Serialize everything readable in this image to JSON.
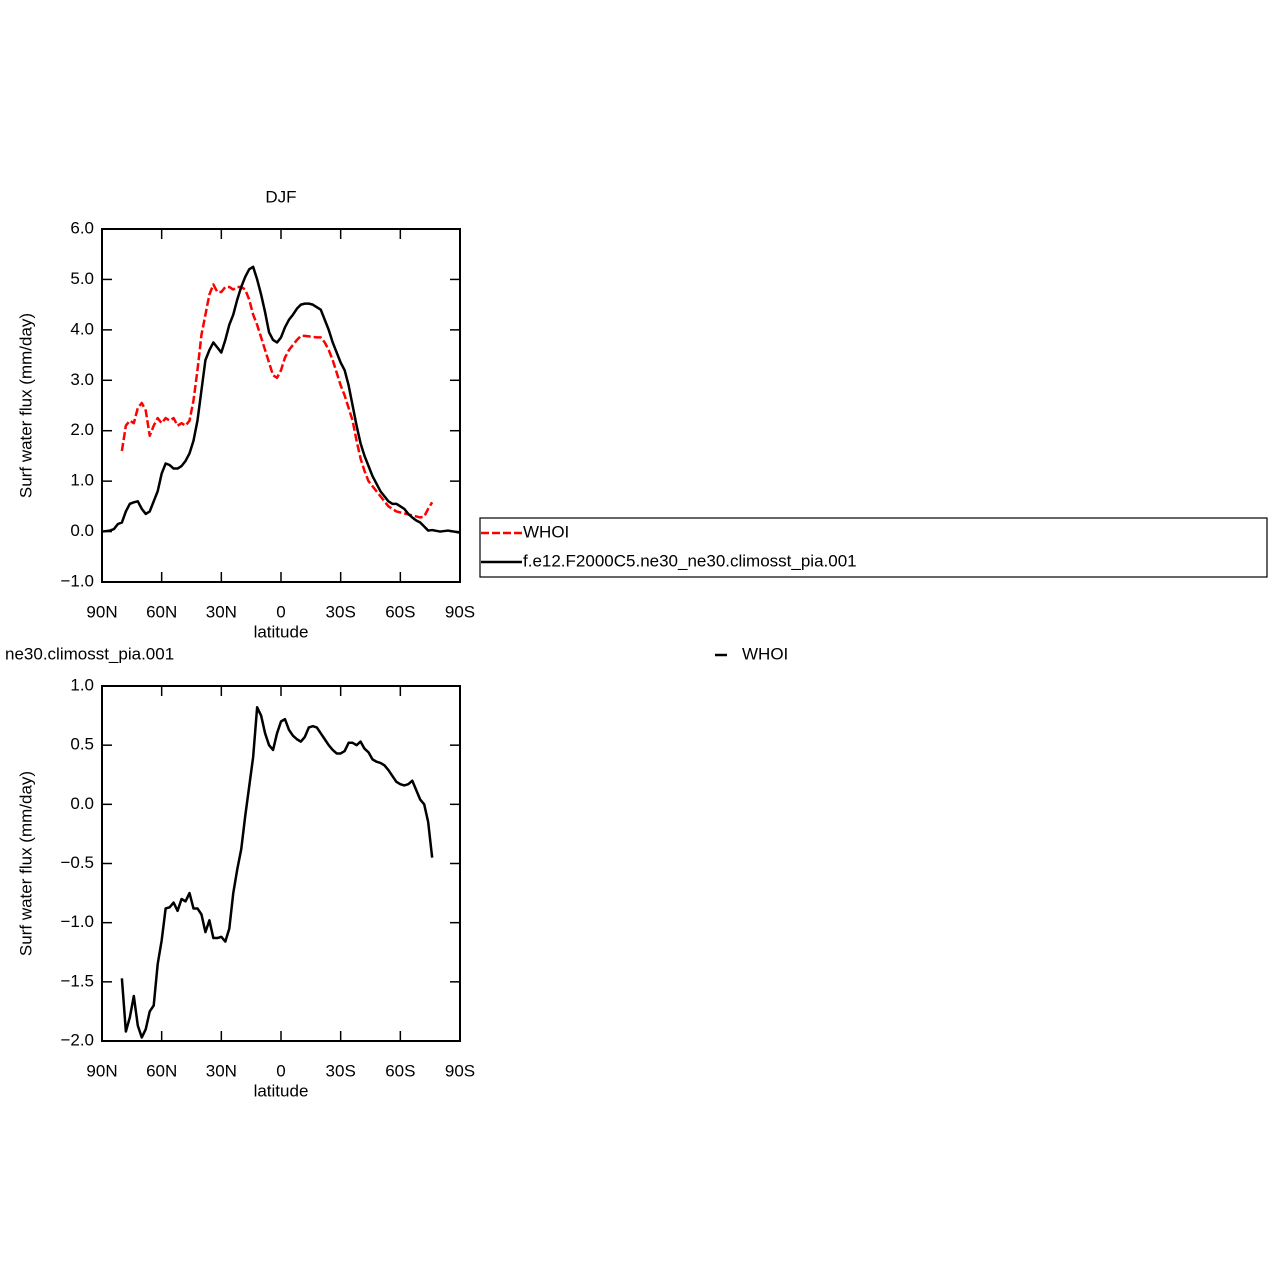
{
  "chart_data": [
    {
      "type": "line",
      "title": "DJF",
      "xlabel": "latitude",
      "ylabel": "Surf water flux (mm/day)",
      "xlim": [
        90,
        -90
      ],
      "xticks": [
        {
          "value": 90,
          "label": "90N"
        },
        {
          "value": 60,
          "label": "60N"
        },
        {
          "value": 30,
          "label": "30N"
        },
        0,
        {
          "value": -30,
          "label": "30S"
        },
        {
          "value": -60,
          "label": "60S"
        },
        {
          "value": -90,
          "label": "90S"
        }
      ],
      "ylim": [
        -1,
        6
      ],
      "yticks": [
        {
          "value": -1,
          "label": "−1.0"
        },
        {
          "value": 0,
          "label": "0.0"
        },
        {
          "value": 1,
          "label": "1.0"
        },
        {
          "value": 2,
          "label": "2.0"
        },
        {
          "value": 3,
          "label": "3.0"
        },
        {
          "value": 4,
          "label": "4.0"
        },
        {
          "value": 5,
          "label": "5.0"
        },
        {
          "value": 6,
          "label": "6.0"
        }
      ],
      "legend": "right",
      "series": [
        {
          "name": "WHOI",
          "color": "#ff0000",
          "linestyle": "dashed",
          "x": [
            80,
            78,
            76,
            74,
            72,
            70,
            68,
            66,
            64,
            62,
            60,
            58,
            56,
            54,
            52,
            50,
            48,
            46,
            44,
            42,
            40,
            38,
            36,
            34,
            32,
            30,
            28,
            26,
            24,
            22,
            20,
            18,
            16,
            14,
            12,
            10,
            8,
            6,
            4,
            2,
            0,
            -2,
            -4,
            -6,
            -8,
            -10,
            -12,
            -14,
            -16,
            -18,
            -20,
            -22,
            -24,
            -26,
            -28,
            -30,
            -32,
            -34,
            -36,
            -38,
            -40,
            -42,
            -44,
            -46,
            -48,
            -50,
            -52,
            -54,
            -56,
            -58,
            -60,
            -62,
            -64,
            -66,
            -68,
            -70,
            -72,
            -74,
            -76
          ],
          "values": [
            1.6,
            2.1,
            2.2,
            2.15,
            2.45,
            2.55,
            2.4,
            1.9,
            2.1,
            2.25,
            2.15,
            2.25,
            2.2,
            2.25,
            2.1,
            2.15,
            2.1,
            2.2,
            2.6,
            3.2,
            3.9,
            4.3,
            4.7,
            4.9,
            4.75,
            4.75,
            4.85,
            4.85,
            4.8,
            4.85,
            4.85,
            4.8,
            4.6,
            4.3,
            4.1,
            3.85,
            3.6,
            3.35,
            3.1,
            3.05,
            3.2,
            3.45,
            3.6,
            3.7,
            3.8,
            3.88,
            3.88,
            3.87,
            3.86,
            3.85,
            3.85,
            3.75,
            3.6,
            3.4,
            3.15,
            2.9,
            2.7,
            2.45,
            2.2,
            1.8,
            1.45,
            1.2,
            1.0,
            0.9,
            0.8,
            0.7,
            0.6,
            0.5,
            0.45,
            0.4,
            0.38,
            0.36,
            0.34,
            0.32,
            0.3,
            0.28,
            0.3,
            0.45,
            0.58
          ]
        },
        {
          "name": "f.e12.F2000C5.ne30_ne30.climosst_pia.001",
          "color": "#000000",
          "linestyle": "solid",
          "x": [
            90,
            86,
            84,
            82,
            80,
            78,
            76,
            74,
            72,
            70,
            68,
            66,
            64,
            62,
            60,
            58,
            56,
            54,
            52,
            50,
            48,
            46,
            44,
            42,
            40,
            38,
            36,
            34,
            32,
            30,
            28,
            26,
            24,
            22,
            20,
            18,
            16,
            14,
            12,
            10,
            8,
            6,
            4,
            2,
            0,
            -2,
            -4,
            -6,
            -8,
            -10,
            -12,
            -14,
            -16,
            -18,
            -20,
            -22,
            -24,
            -26,
            -28,
            -30,
            -32,
            -34,
            -36,
            -38,
            -40,
            -42,
            -44,
            -46,
            -48,
            -50,
            -52,
            -54,
            -56,
            -58,
            -60,
            -62,
            -64,
            -66,
            -68,
            -70,
            -72,
            -74,
            -76,
            -80,
            -84,
            -90
          ],
          "values": [
            0.0,
            0.02,
            0.05,
            0.15,
            0.18,
            0.4,
            0.55,
            0.58,
            0.6,
            0.45,
            0.35,
            0.4,
            0.6,
            0.8,
            1.15,
            1.35,
            1.32,
            1.25,
            1.25,
            1.3,
            1.4,
            1.55,
            1.8,
            2.2,
            2.8,
            3.4,
            3.6,
            3.75,
            3.65,
            3.55,
            3.8,
            4.1,
            4.3,
            4.6,
            4.85,
            5.05,
            5.2,
            5.25,
            5.0,
            4.7,
            4.35,
            3.95,
            3.8,
            3.75,
            3.85,
            4.05,
            4.2,
            4.3,
            4.42,
            4.5,
            4.52,
            4.52,
            4.5,
            4.45,
            4.4,
            4.2,
            4.0,
            3.75,
            3.55,
            3.35,
            3.2,
            2.9,
            2.5,
            2.1,
            1.75,
            1.5,
            1.3,
            1.1,
            0.95,
            0.8,
            0.7,
            0.6,
            0.55,
            0.55,
            0.5,
            0.45,
            0.35,
            0.28,
            0.22,
            0.18,
            0.1,
            0.02,
            0.03,
            0.0,
            0.02,
            -0.02
          ]
        }
      ]
    },
    {
      "type": "line",
      "title": "ne30.climosst_pia.001",
      "xlabel": "latitude",
      "ylabel": "Surf water flux (mm/day)",
      "xlim": [
        90,
        -90
      ],
      "xticks": [
        {
          "value": 90,
          "label": "90N"
        },
        {
          "value": 60,
          "label": "60N"
        },
        {
          "value": 30,
          "label": "30N"
        },
        0,
        {
          "value": -30,
          "label": "30S"
        },
        {
          "value": -60,
          "label": "60S"
        },
        {
          "value": -90,
          "label": "90S"
        }
      ],
      "ylim": [
        -2,
        1
      ],
      "yticks": [
        {
          "value": -2,
          "label": "−2.0"
        },
        {
          "value": -1.5,
          "label": "−1.5"
        },
        {
          "value": -1,
          "label": "−1.0"
        },
        {
          "value": -0.5,
          "label": "−0.5"
        },
        {
          "value": 0,
          "label": "0.0"
        },
        {
          "value": 0.5,
          "label": "0.5"
        },
        {
          "value": 1,
          "label": "1.0"
        }
      ],
      "legend": "top",
      "series": [
        {
          "name": "WHOI",
          "color": "#000000",
          "linestyle": "solid",
          "x": [
            80,
            78,
            76,
            74,
            72,
            70,
            68,
            66,
            64,
            62,
            60,
            58,
            56,
            54,
            52,
            50,
            48,
            46,
            44,
            42,
            40,
            38,
            36,
            34,
            32,
            30,
            28,
            26,
            24,
            22,
            20,
            18,
            16,
            14,
            12,
            10,
            8,
            6,
            4,
            2,
            0,
            -2,
            -4,
            -6,
            -8,
            -10,
            -12,
            -14,
            -16,
            -18,
            -20,
            -22,
            -24,
            -26,
            -28,
            -30,
            -32,
            -34,
            -36,
            -38,
            -40,
            -42,
            -44,
            -46,
            -48,
            -50,
            -52,
            -54,
            -56,
            -58,
            -60,
            -62,
            -64,
            -66,
            -68,
            -70,
            -72,
            -74,
            -76
          ],
          "values": [
            -1.47,
            -1.92,
            -1.8,
            -1.62,
            -1.87,
            -1.97,
            -1.9,
            -1.75,
            -1.7,
            -1.35,
            -1.15,
            -0.88,
            -0.87,
            -0.83,
            -0.9,
            -0.8,
            -0.82,
            -0.75,
            -0.88,
            -0.88,
            -0.93,
            -1.08,
            -0.98,
            -1.13,
            -1.13,
            -1.12,
            -1.16,
            -1.05,
            -0.75,
            -0.55,
            -0.38,
            -0.1,
            0.15,
            0.4,
            0.82,
            0.75,
            0.6,
            0.5,
            0.46,
            0.6,
            0.7,
            0.72,
            0.63,
            0.58,
            0.55,
            0.53,
            0.57,
            0.65,
            0.66,
            0.65,
            0.6,
            0.55,
            0.5,
            0.46,
            0.43,
            0.43,
            0.45,
            0.52,
            0.52,
            0.5,
            0.53,
            0.47,
            0.44,
            0.38,
            0.36,
            0.35,
            0.33,
            0.29,
            0.24,
            0.19,
            0.17,
            0.16,
            0.17,
            0.2,
            0.12,
            0.04,
            0.0,
            -0.15,
            -0.45
          ]
        }
      ]
    }
  ]
}
